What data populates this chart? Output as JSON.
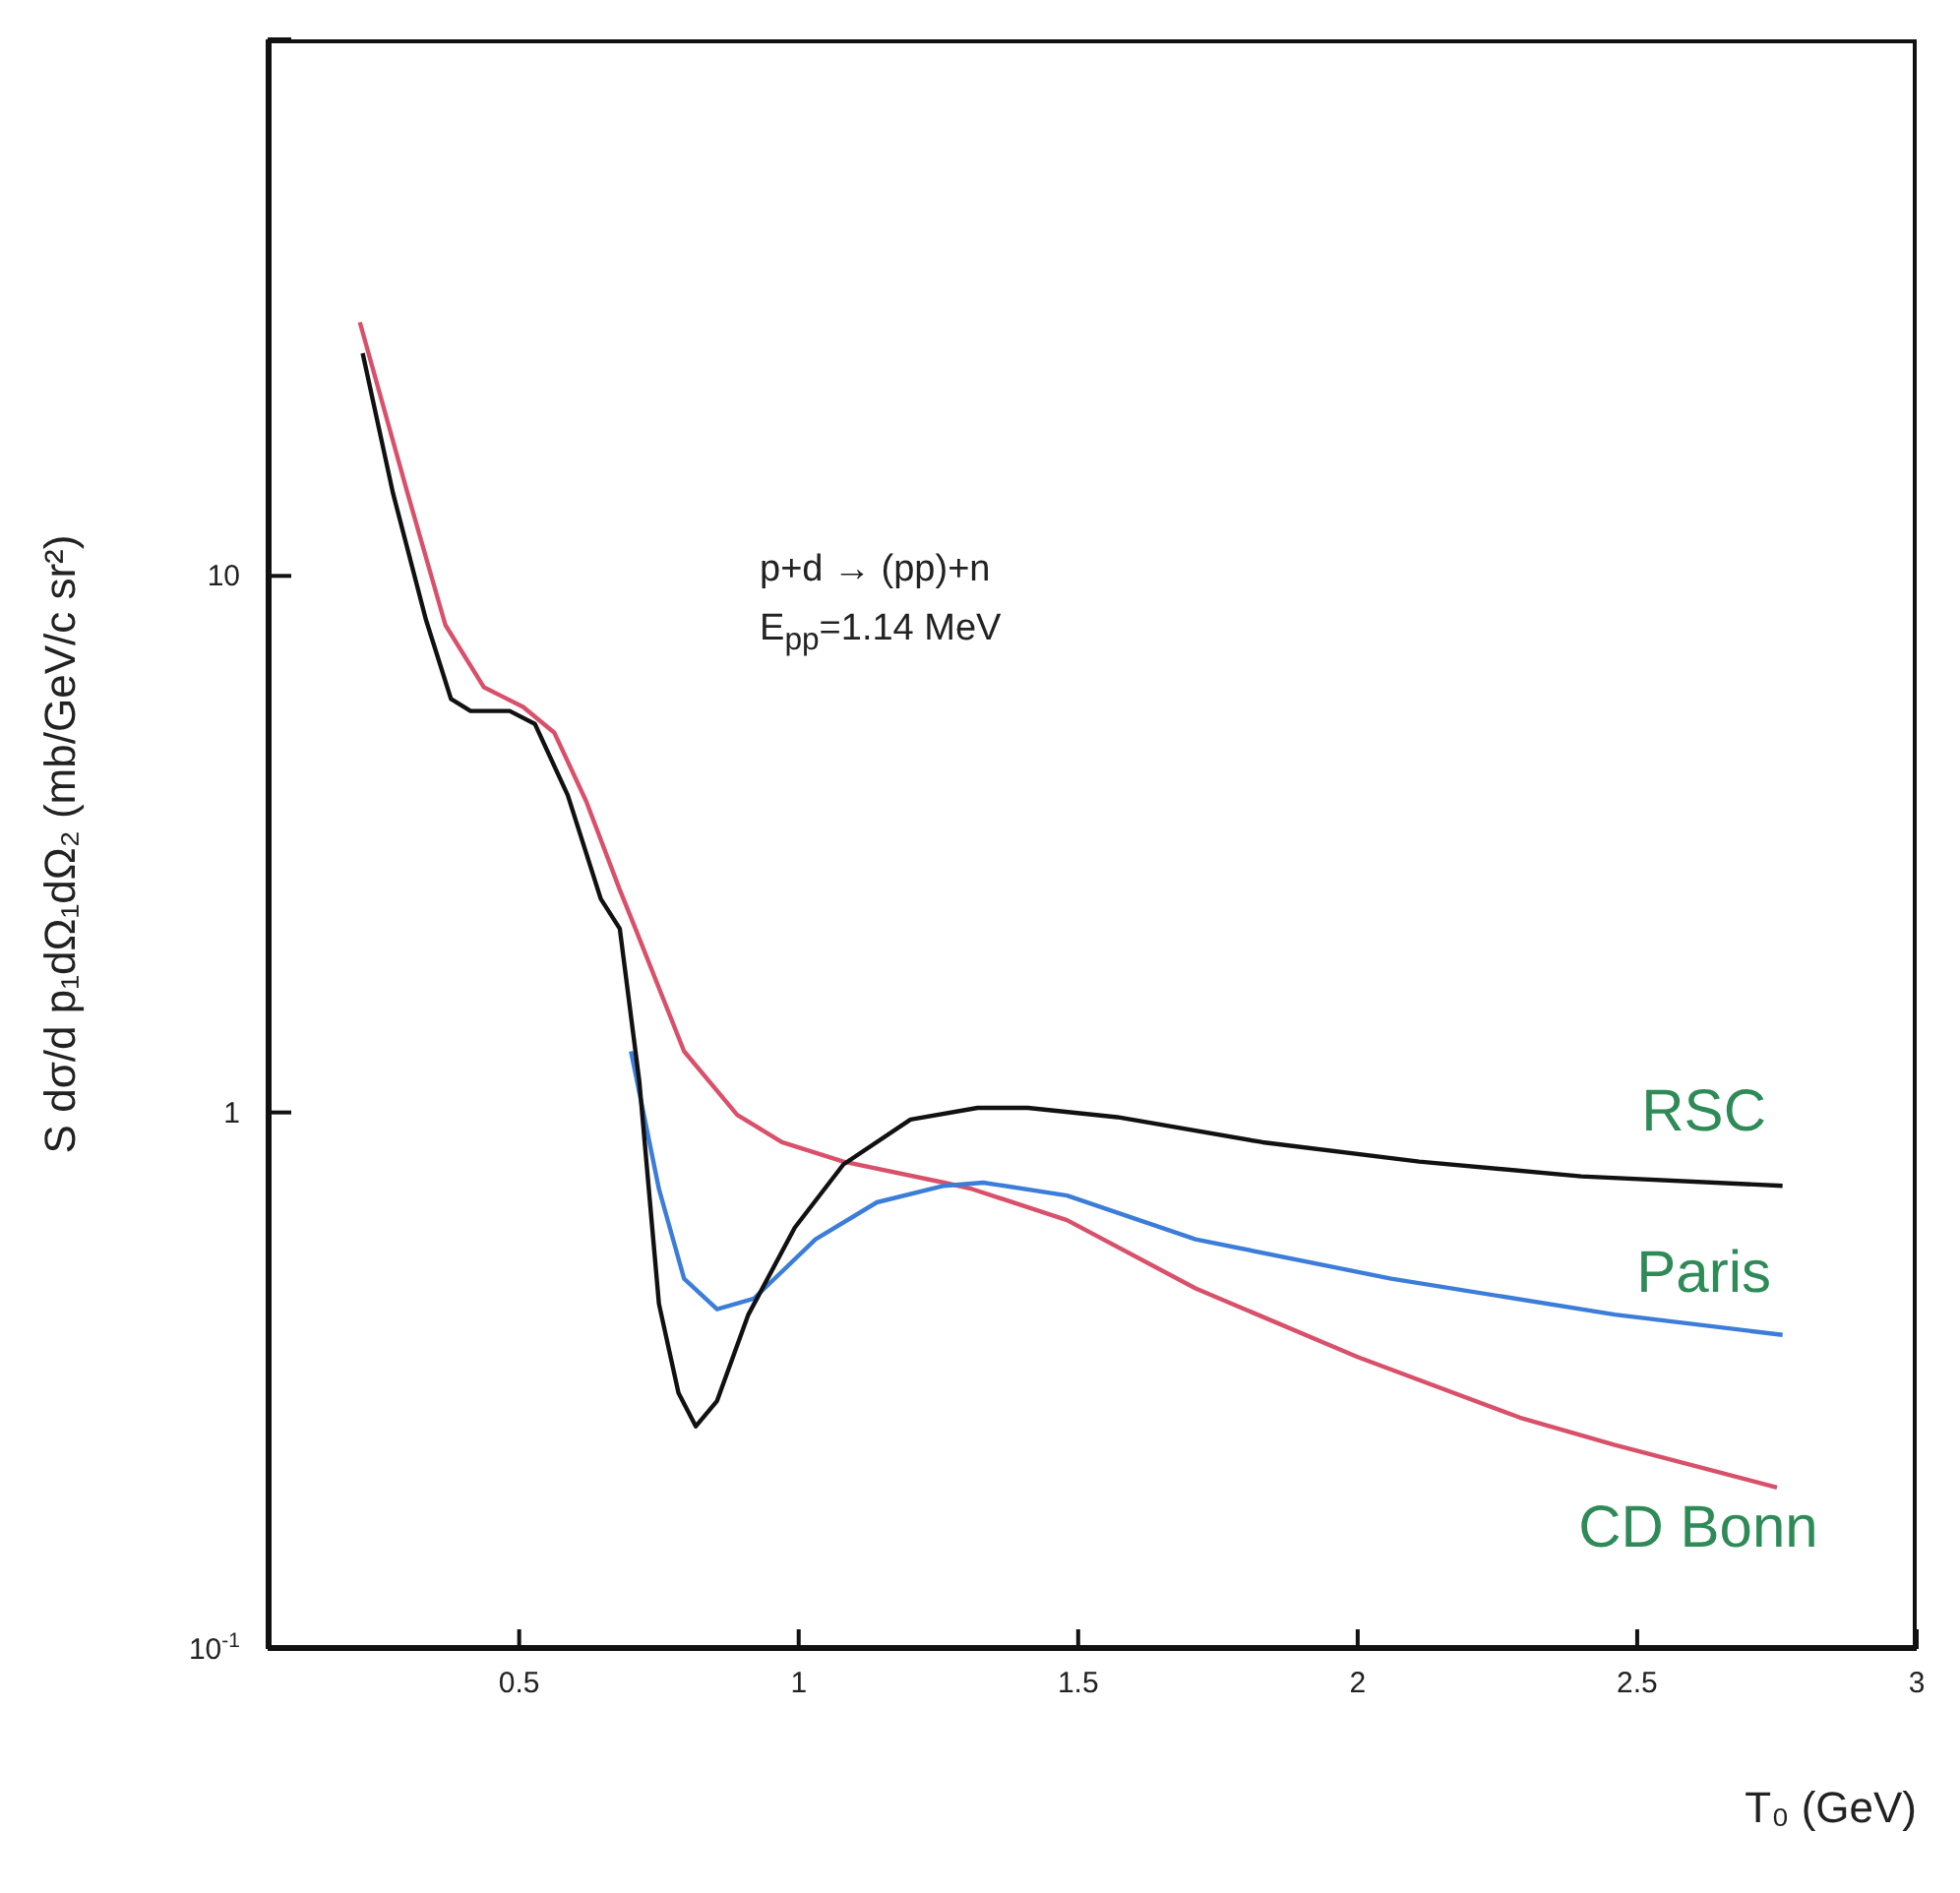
{
  "chart_data": {
    "type": "line",
    "xlabel": "T₀ (GeV)",
    "ylabel": "S dσ/d p₁dΩ₁dΩ₂ (mb/GeV/c sr²)",
    "annotations": [
      "p+d → (pp)+n",
      "E$_{pp}$=1.14 MeV"
    ],
    "log": "y",
    "xlim": [
      0.05,
      3
    ],
    "xticks": [
      0.5,
      1,
      1.5,
      2,
      2.5,
      3
    ],
    "ylim": [
      0.1,
      100
    ],
    "yticks": [
      {
        "value": 0.1,
        "label": "10$^{-1}$"
      },
      1,
      10,
      {
        "value": 100,
        "label": null
      }
    ],
    "grid": false,
    "legend": false,
    "marker": "none",
    "line_style": "solid",
    "series": [
      {
        "name": "RSC",
        "color": "#111111",
        "x": [
          0.22,
          0.274,
          0.333,
          0.378,
          0.413,
          0.483,
          0.528,
          0.587,
          0.646,
          0.68,
          0.715,
          0.75,
          0.785,
          0.816,
          0.854,
          0.91,
          0.993,
          1.08,
          1.2,
          1.32,
          1.41,
          1.57,
          1.83,
          2.11,
          2.4,
          2.76
        ],
        "values": [
          26,
          14.3,
          8.3,
          5.9,
          5.6,
          5.6,
          5.3,
          3.9,
          2.5,
          2.2,
          1.14,
          0.44,
          0.3,
          0.26,
          0.29,
          0.42,
          0.61,
          0.8,
          0.97,
          1.02,
          1.02,
          0.98,
          0.88,
          0.81,
          0.76,
          0.73
        ]
      },
      {
        "name": "Paris",
        "color": "#3b7dd8",
        "x": [
          0.7,
          0.75,
          0.795,
          0.854,
          0.92,
          1.03,
          1.14,
          1.26,
          1.33,
          1.48,
          1.71,
          2.06,
          2.46,
          2.76
        ],
        "values": [
          1.3,
          0.72,
          0.49,
          0.43,
          0.45,
          0.58,
          0.68,
          0.73,
          0.74,
          0.7,
          0.58,
          0.49,
          0.42,
          0.385
        ]
      },
      {
        "name": "CD Bonn",
        "color": "#d9506a",
        "x": [
          0.215,
          0.3,
          0.368,
          0.437,
          0.507,
          0.563,
          0.62,
          0.68,
          0.708,
          0.795,
          0.89,
          0.97,
          1.08,
          1.26,
          1.31,
          1.48,
          1.71,
          2.0,
          2.29,
          2.46,
          2.75
        ],
        "values": [
          29.7,
          14.3,
          8.1,
          6.2,
          5.7,
          5.1,
          3.8,
          2.6,
          2.2,
          1.3,
          0.99,
          0.88,
          0.81,
          0.74,
          0.72,
          0.63,
          0.47,
          0.35,
          0.27,
          0.24,
          0.2
        ]
      }
    ]
  }
}
